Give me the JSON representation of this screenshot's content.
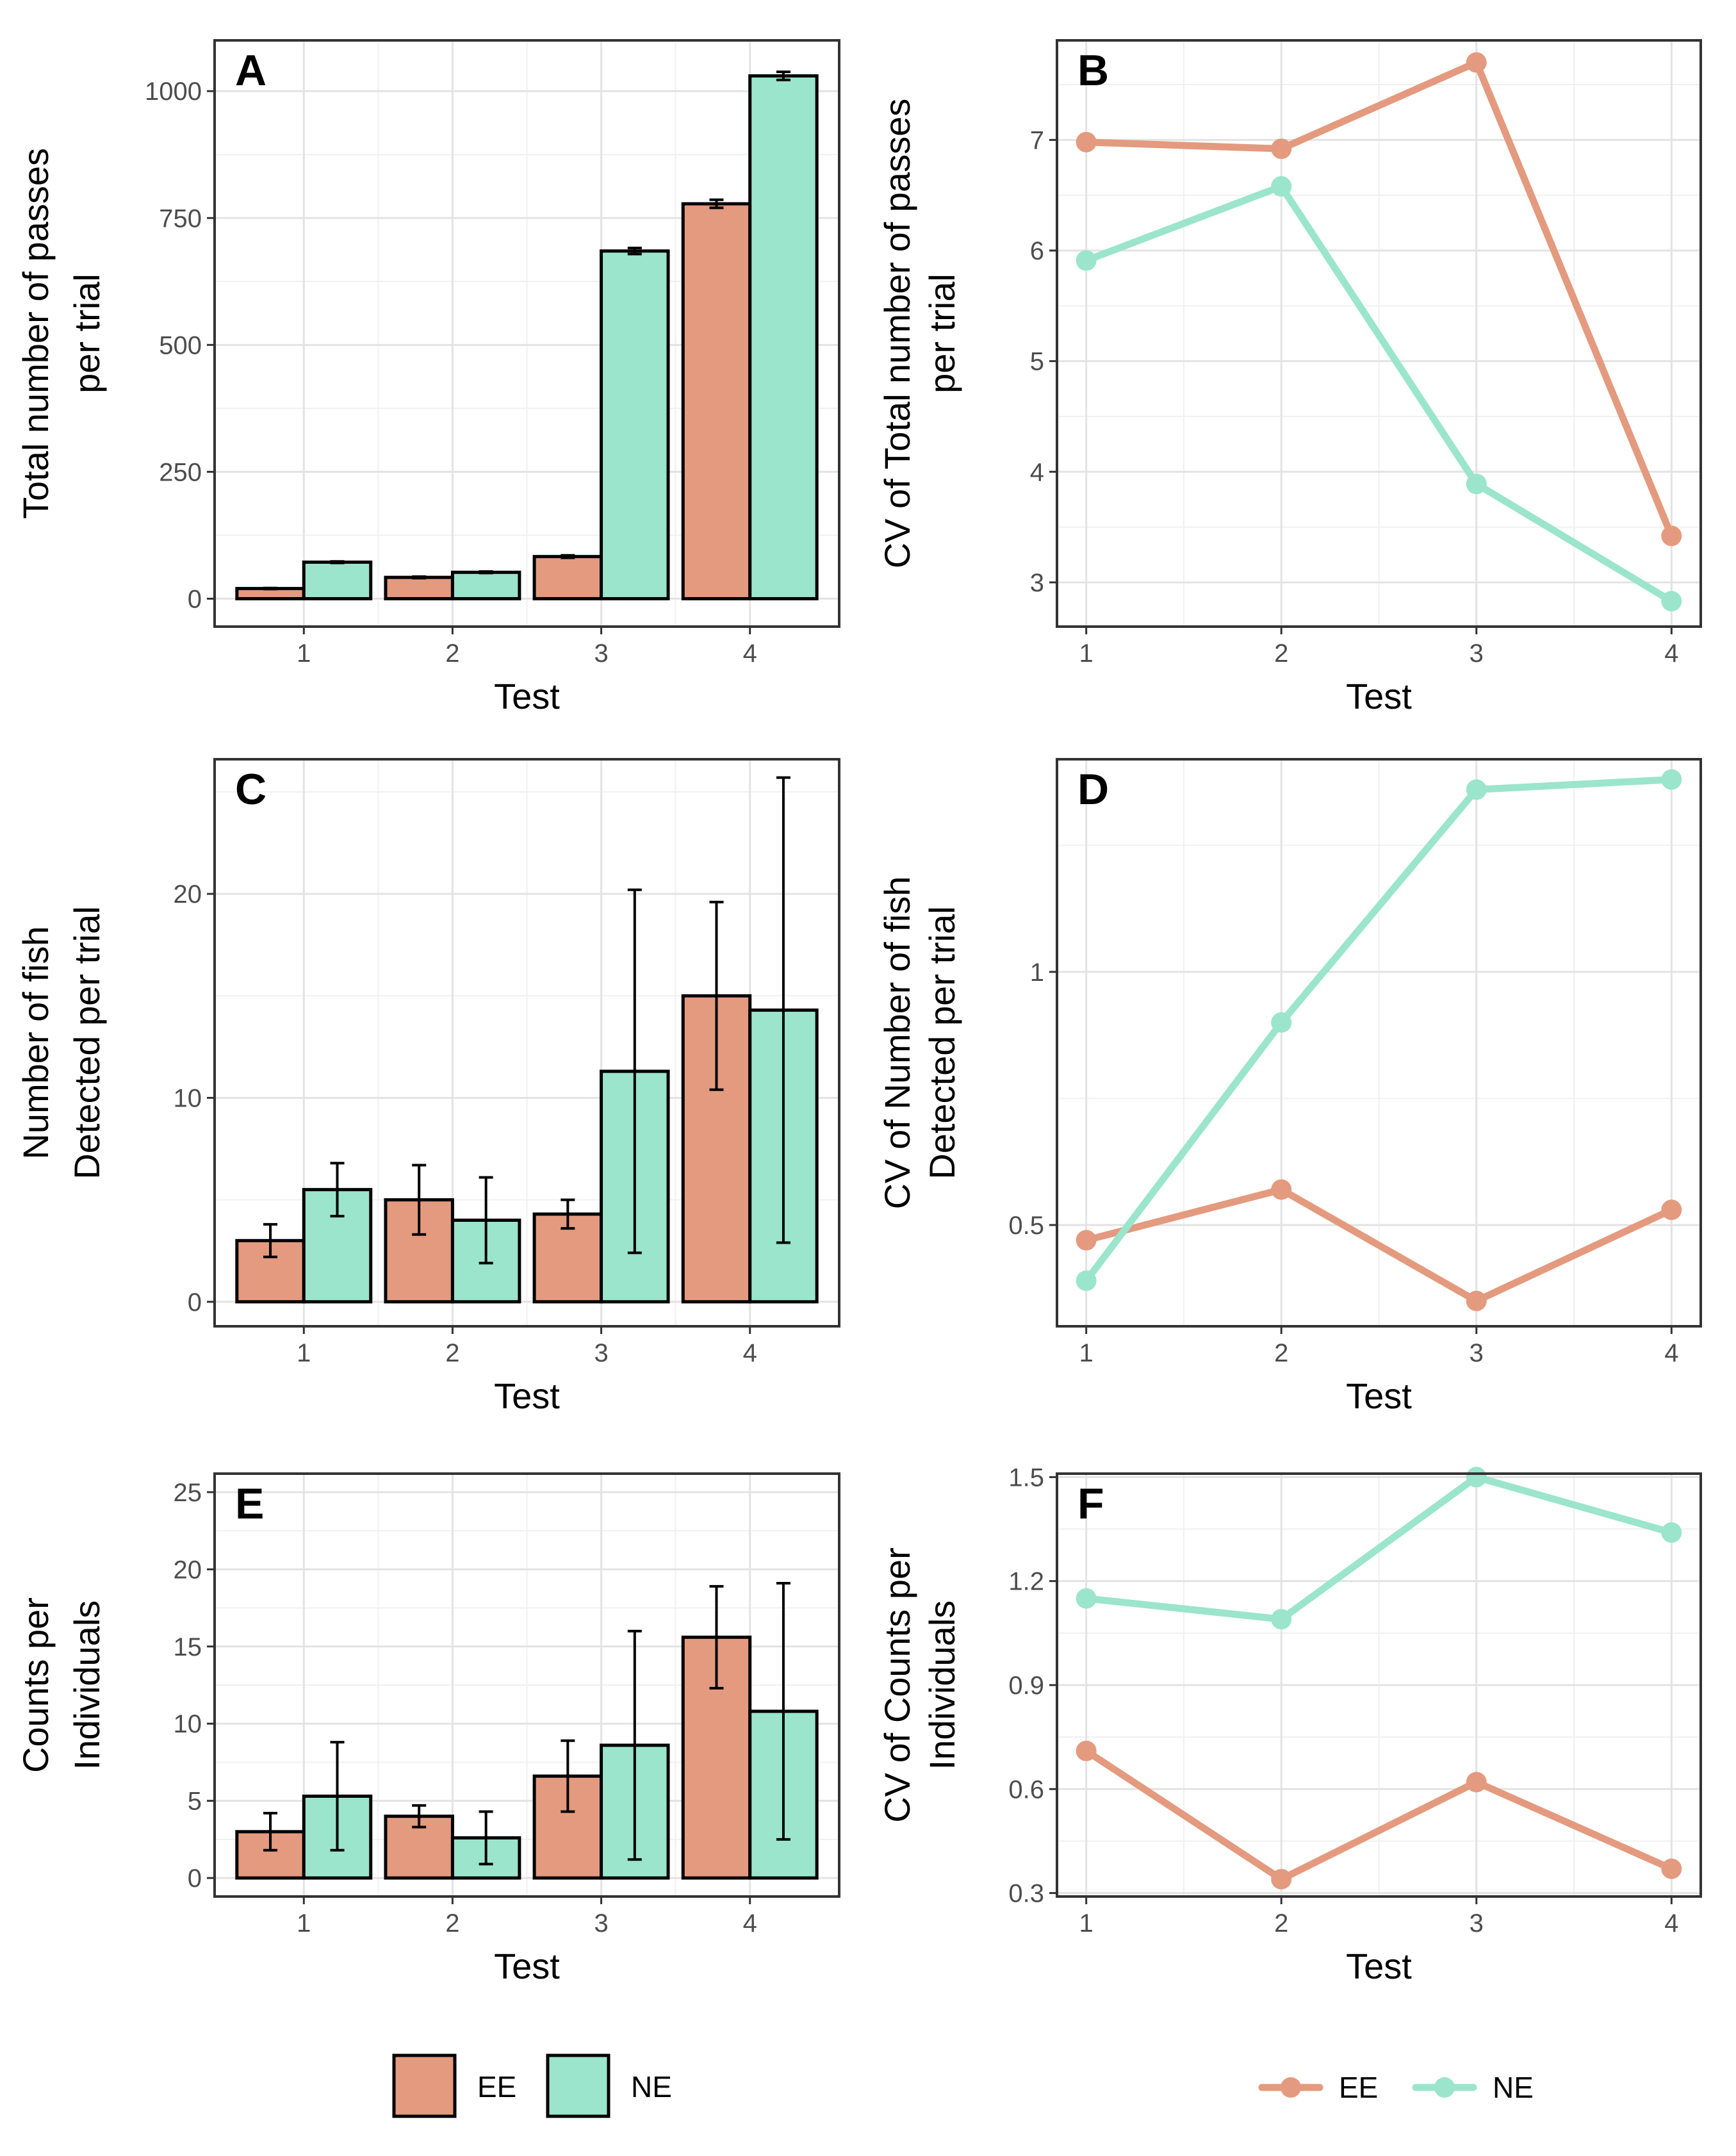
{
  "colors": {
    "EE": "#E49A7E",
    "NE": "#9BE5CC"
  },
  "legends": {
    "bar": {
      "items": [
        "EE",
        "NE"
      ]
    },
    "line": {
      "items": [
        "EE",
        "NE"
      ]
    }
  },
  "chart_data": [
    {
      "panel": "A",
      "type": "bar",
      "title": "A",
      "xlabel": "Test",
      "ylabel": [
        "Total number of passes",
        "per trial"
      ],
      "categories": [
        "1",
        "2",
        "3",
        "4"
      ],
      "ylim": [
        -55,
        1100
      ],
      "yticks": [
        0,
        250,
        500,
        750,
        1000
      ],
      "series": [
        {
          "name": "EE",
          "values": [
            20,
            42,
            83,
            778
          ],
          "errors": [
            1,
            1.5,
            2.5,
            8
          ]
        },
        {
          "name": "NE",
          "values": [
            72,
            52,
            685,
            1030
          ],
          "errors": [
            1.5,
            1.5,
            6,
            8
          ]
        }
      ]
    },
    {
      "panel": "B",
      "type": "line",
      "title": "B",
      "xlabel": "Test",
      "ylabel": [
        "CV of Total number of passes",
        "per trial"
      ],
      "x": [
        "1",
        "2",
        "3",
        "4"
      ],
      "ylim": [
        2.6,
        7.9
      ],
      "yticks": [
        3,
        4,
        5,
        6,
        7
      ],
      "series": [
        {
          "name": "EE",
          "values": [
            6.98,
            6.92,
            7.7,
            3.42
          ]
        },
        {
          "name": "NE",
          "values": [
            5.91,
            6.58,
            3.89,
            2.83
          ]
        }
      ]
    },
    {
      "panel": "C",
      "type": "bar",
      "title": "C",
      "xlabel": "Test",
      "ylabel": [
        "Number of fish",
        "Detected per trial"
      ],
      "categories": [
        "1",
        "2",
        "3",
        "4"
      ],
      "ylim": [
        -1.2,
        26.6
      ],
      "yticks": [
        0,
        10,
        20
      ],
      "series": [
        {
          "name": "EE",
          "values": [
            3.0,
            5.0,
            4.3,
            15.0
          ],
          "errors": [
            0.8,
            1.7,
            0.7,
            4.6
          ]
        },
        {
          "name": "NE",
          "values": [
            5.5,
            4.0,
            11.3,
            14.3
          ],
          "errors": [
            1.3,
            2.1,
            8.9,
            11.4
          ]
        }
      ]
    },
    {
      "panel": "D",
      "type": "line",
      "title": "D",
      "xlabel": "Test",
      "ylabel": [
        "CV of Number of fish",
        "Detected per trial"
      ],
      "x": [
        "1",
        "2",
        "3",
        "4"
      ],
      "ylim": [
        0.3,
        1.42
      ],
      "yticks": [
        0.5,
        1.0
      ],
      "series": [
        {
          "name": "EE",
          "values": [
            0.47,
            0.57,
            0.35,
            0.53
          ]
        },
        {
          "name": "NE",
          "values": [
            0.39,
            0.9,
            1.36,
            1.38
          ]
        }
      ]
    },
    {
      "panel": "E",
      "type": "bar",
      "title": "E",
      "xlabel": "Test",
      "ylabel": [
        "Counts per",
        "Individuals"
      ],
      "categories": [
        "1",
        "2",
        "3",
        "4"
      ],
      "ylim": [
        -1.2,
        26.2
      ],
      "yticks": [
        0,
        5,
        10,
        15,
        20,
        25
      ],
      "series": [
        {
          "name": "EE",
          "values": [
            3.0,
            4.0,
            6.6,
            15.6
          ],
          "errors": [
            1.2,
            0.7,
            2.3,
            3.3
          ]
        },
        {
          "name": "NE",
          "values": [
            5.3,
            2.6,
            8.6,
            10.8
          ],
          "errors": [
            3.5,
            1.7,
            7.4,
            8.3
          ]
        }
      ]
    },
    {
      "panel": "F",
      "type": "line",
      "title": "F",
      "xlabel": "Test",
      "ylabel": [
        "CV of Counts per",
        "Individuals"
      ],
      "x": [
        "1",
        "2",
        "3",
        "4"
      ],
      "ylim": [
        0.29,
        1.51
      ],
      "yticks": [
        0.3,
        0.6,
        0.9,
        1.2,
        1.5
      ],
      "series": [
        {
          "name": "EE",
          "values": [
            0.71,
            0.34,
            0.62,
            0.37
          ]
        },
        {
          "name": "NE",
          "values": [
            1.15,
            1.09,
            1.5,
            1.34
          ]
        }
      ]
    }
  ]
}
